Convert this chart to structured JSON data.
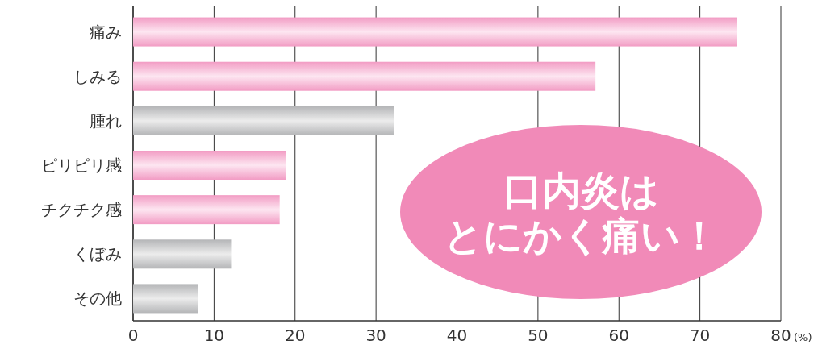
{
  "chart_data": {
    "type": "bar",
    "orientation": "horizontal",
    "xlabel": "(%)",
    "categories": [
      "痛み",
      "しみる",
      "腫れ",
      "ピリピリ感",
      "チクチク感",
      "くぼみ",
      "その他"
    ],
    "values": [
      74.6,
      57.1,
      32.2,
      18.9,
      18.1,
      12.1,
      8.0
    ],
    "colors": [
      "#f29cc4",
      "#f29cc4",
      "#b4b5b7",
      "#f29cc4",
      "#f29cc4",
      "#b4b5b7",
      "#b4b5b7"
    ],
    "xlim": [
      0,
      80
    ],
    "xticks": [
      0,
      10,
      20,
      30,
      40,
      50,
      60,
      70,
      80
    ],
    "grid": "x",
    "annotations": [
      "口内炎は",
      "とにかく痛い！"
    ]
  }
}
